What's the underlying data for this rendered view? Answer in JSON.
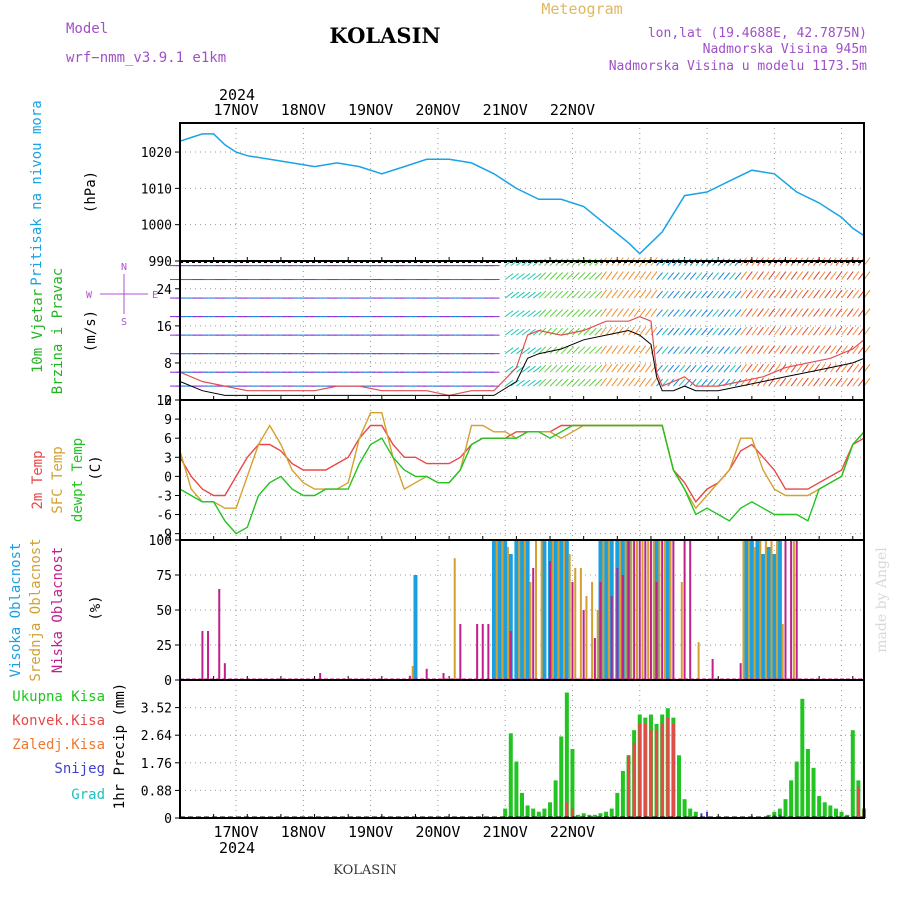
{
  "header": {
    "model_label": "Model",
    "model_value": "wrf−nmm_v3.9.1  e1km",
    "station": "KOLASIN",
    "product": "Meteogram",
    "location": "lon,lat (19.4688E, 42.7875N)",
    "elevation": "Nadmorska Visina 945m",
    "model_elevation": "Nadmorska Visina u modelu 1173.5m",
    "footer_station": "KOLASIN",
    "credit": "made by Angel"
  },
  "colors": {
    "pressure": "#1aa3e6",
    "wind_legend": "#22b422",
    "temp2m": "#e84848",
    "sfc": "#d4a030",
    "dewpt": "#22c422",
    "high_cloud": "#1aa0e0",
    "mid_cloud": "#d4a030",
    "low_cloud": "#c0208c",
    "total_precip": "#22c422",
    "conv_precip": "#e84848",
    "frz_precip": "#f07830",
    "snow": "#4040d0",
    "hail": "#20c0c0",
    "header_purple": "#a050c8",
    "meteogram_title": "#e0b860"
  },
  "chart_data": [
    {
      "type": "line",
      "panel": "pressure",
      "legend": [
        "Pritisak na nivou mora"
      ],
      "ylabel": "(hPa)",
      "year_label": "2024",
      "x_tick_labels": [
        "17NOV",
        "18NOV",
        "19NOV",
        "20NOV",
        "21NOV",
        "22NOV"
      ],
      "y_ticks": [
        990,
        1000,
        1010,
        1020
      ],
      "ylim": [
        990,
        1028
      ],
      "x_hours": [
        0,
        4,
        8,
        12,
        16,
        20,
        24,
        32,
        40,
        48,
        56,
        64,
        72,
        80,
        88,
        96,
        104,
        112,
        120,
        128,
        136,
        144,
        152,
        160,
        164,
        168,
        172,
        176,
        180,
        188,
        196,
        204,
        212,
        220,
        228,
        232,
        236,
        240,
        244
      ],
      "values": [
        1023,
        1024,
        1025,
        1025,
        1022,
        1020,
        1019,
        1018,
        1017,
        1016,
        1017,
        1016,
        1014,
        1016,
        1018,
        1018,
        1017,
        1014,
        1010,
        1007,
        1007,
        1005,
        1000,
        995,
        992,
        995,
        998,
        1003,
        1008,
        1009,
        1012,
        1015,
        1014,
        1009,
        1006,
        1004,
        1002,
        999,
        997
      ]
    },
    {
      "type": "line",
      "panel": "wind",
      "legend": [
        "10m Vjetar",
        "Brzina i Pravac"
      ],
      "ylabel": "(m/s)",
      "compass": "N W E S",
      "y_ticks": [
        0,
        8,
        16,
        24
      ],
      "ylim": [
        0,
        30
      ],
      "x_hours": [
        0,
        8,
        16,
        24,
        32,
        40,
        48,
        56,
        64,
        72,
        80,
        88,
        96,
        104,
        112,
        120,
        124,
        128,
        136,
        144,
        152,
        160,
        164,
        168,
        170,
        172,
        176,
        180,
        184,
        192,
        200,
        208,
        216,
        224,
        232,
        240,
        244
      ],
      "gust": [
        6,
        4,
        3,
        2,
        2,
        2,
        2,
        3,
        3,
        2,
        2,
        2,
        1,
        2,
        2,
        7,
        14,
        15,
        14,
        15,
        17,
        17,
        18,
        17,
        6,
        3,
        4,
        5,
        3,
        3,
        4,
        5,
        7,
        8,
        9,
        11,
        13
      ],
      "mean": [
        4,
        2,
        1,
        1,
        1,
        1,
        1,
        1,
        1,
        1,
        1,
        1,
        1,
        1,
        1,
        4,
        9,
        10,
        11,
        13,
        14,
        15,
        14,
        12,
        5,
        2,
        2,
        3,
        2,
        2,
        3,
        4,
        5,
        6,
        7,
        8,
        9
      ]
    },
    {
      "type": "line",
      "panel": "temperature",
      "legend": [
        "2m Temp",
        "SFC Temp",
        "dewpt Temp"
      ],
      "ylabel": "(C)",
      "y_ticks": [
        -9,
        -6,
        -3,
        0,
        3,
        6,
        9,
        12
      ],
      "ylim": [
        -10,
        12
      ],
      "x_hours": [
        0,
        4,
        8,
        12,
        16,
        20,
        24,
        28,
        32,
        36,
        40,
        44,
        48,
        52,
        56,
        60,
        64,
        68,
        72,
        76,
        80,
        84,
        88,
        92,
        96,
        100,
        104,
        108,
        112,
        116,
        120,
        124,
        128,
        132,
        136,
        140,
        144,
        148,
        152,
        156,
        160,
        164,
        168,
        172,
        176,
        180,
        184,
        188,
        192,
        196,
        200,
        204,
        208,
        212,
        216,
        220,
        224,
        228,
        232,
        236,
        240,
        244
      ],
      "series": [
        {
          "name": "2m Temp",
          "values": [
            3,
            0,
            -2,
            -3,
            -3,
            0,
            3,
            5,
            5,
            4,
            2,
            1,
            1,
            1,
            2,
            3,
            6,
            8,
            8,
            5,
            3,
            3,
            2,
            2,
            2,
            3,
            5,
            6,
            6,
            6,
            7,
            7,
            7,
            7,
            8,
            8,
            8,
            8,
            8,
            8,
            8,
            8,
            8,
            8,
            1,
            -1,
            -4,
            -2,
            -1,
            1,
            4,
            5,
            3,
            1,
            -2,
            -2,
            -2,
            -1,
            0,
            1,
            5,
            6
          ]
        },
        {
          "name": "SFC Temp",
          "values": [
            4,
            -2,
            -4,
            -4,
            -5,
            -5,
            0,
            5,
            8,
            5,
            1,
            -1,
            -2,
            -2,
            -2,
            -1,
            6,
            10,
            10,
            3,
            -2,
            -1,
            0,
            -1,
            -1,
            1,
            8,
            8,
            7,
            7,
            6,
            7,
            7,
            7,
            6,
            7,
            8,
            8,
            8,
            8,
            8,
            8,
            8,
            8,
            1,
            -2,
            -5,
            -3,
            -1,
            1,
            6,
            6,
            1,
            -2,
            -3,
            -3,
            -3,
            -2,
            -1,
            0,
            5,
            7
          ]
        },
        {
          "name": "dewpt Temp",
          "values": [
            -2,
            -3,
            -4,
            -4,
            -7,
            -9,
            -8,
            -3,
            -1,
            0,
            -2,
            -3,
            -3,
            -2,
            -2,
            -2,
            2,
            5,
            6,
            3,
            1,
            0,
            0,
            -1,
            -1,
            1,
            5,
            6,
            6,
            6,
            6,
            7,
            7,
            6,
            7,
            8,
            8,
            8,
            8,
            8,
            8,
            8,
            8,
            8,
            1,
            -2,
            -6,
            -5,
            -6,
            -7,
            -5,
            -4,
            -5,
            -6,
            -6,
            -6,
            -7,
            -2,
            -1,
            0,
            5,
            7
          ]
        }
      ]
    },
    {
      "type": "bar",
      "panel": "clouds",
      "legend": [
        "Visoka Oblacnost",
        "Srednja Oblacnost",
        "Niska Oblacnost"
      ],
      "ylabel": "(%)",
      "y_ticks": [
        0,
        25,
        50,
        75,
        100
      ],
      "ylim": [
        0,
        100
      ],
      "series": [
        {
          "name": "Visoka Oblacnost",
          "x_hours": [
            84,
            112,
            114,
            116,
            118,
            120,
            122,
            124,
            130,
            132,
            134,
            136,
            138,
            150,
            152,
            154,
            156,
            158,
            160,
            170,
            174,
            202,
            204,
            206,
            208,
            210,
            212,
            214
          ],
          "values": [
            75,
            100,
            100,
            100,
            90,
            100,
            100,
            100,
            100,
            100,
            100,
            100,
            100,
            100,
            100,
            100,
            100,
            100,
            100,
            100,
            100,
            100,
            100,
            100,
            90,
            95,
            90,
            100
          ]
        },
        {
          "name": "Srednja Oblacnost",
          "x_hours": [
            83,
            98,
            113,
            115,
            117,
            121,
            123,
            125,
            127,
            129,
            133,
            135,
            137,
            139,
            141,
            143,
            145,
            147,
            149,
            151,
            153,
            157,
            159,
            161,
            163,
            165,
            167,
            169,
            171,
            173,
            175,
            179,
            185,
            201,
            203,
            205,
            207,
            209,
            211,
            213,
            215,
            219
          ],
          "values": [
            10,
            87,
            100,
            100,
            95,
            100,
            100,
            70,
            100,
            100,
            100,
            100,
            100,
            90,
            80,
            80,
            60,
            70,
            50,
            100,
            100,
            100,
            100,
            100,
            100,
            100,
            100,
            100,
            100,
            100,
            100,
            70,
            27,
            100,
            100,
            95,
            100,
            100,
            100,
            100,
            40,
            100
          ]
        },
        {
          "name": "Niska Oblacnost",
          "x_hours": [
            8,
            10,
            14,
            16,
            50,
            82,
            88,
            94,
            100,
            106,
            108,
            110,
            118,
            126,
            132,
            140,
            144,
            148,
            150,
            154,
            156,
            158,
            160,
            162,
            164,
            166,
            168,
            170,
            172,
            176,
            180,
            182,
            190,
            200,
            216,
            218,
            220
          ],
          "values": [
            35,
            35,
            65,
            12,
            5,
            3,
            8,
            5,
            40,
            40,
            40,
            40,
            35,
            80,
            85,
            70,
            50,
            30,
            70,
            60,
            80,
            75,
            100,
            100,
            100,
            100,
            100,
            70,
            100,
            100,
            100,
            100,
            15,
            12,
            100,
            100,
            100
          ]
        }
      ]
    },
    {
      "type": "bar",
      "panel": "precipitation",
      "legend": [
        "Ukupna Kisa",
        "Konvek.Kisa",
        "Zaledj.Kisa",
        "Snijeg",
        "Grad"
      ],
      "ylabel": "1hr Precip (mm)",
      "y_ticks": [
        0,
        0.88,
        1.76,
        2.64,
        3.52
      ],
      "ylim": [
        0,
        4.4
      ],
      "x_tick_labels": [
        "17NOV",
        "18NOV",
        "19NOV",
        "20NOV",
        "21NOV",
        "22NOV"
      ],
      "year_label": "2024",
      "series": [
        {
          "name": "Ukupna Kisa",
          "x_hours": [
            116,
            118,
            120,
            122,
            124,
            126,
            128,
            130,
            132,
            134,
            136,
            138,
            140,
            142,
            144,
            146,
            148,
            150,
            152,
            154,
            156,
            158,
            160,
            162,
            164,
            166,
            168,
            170,
            172,
            174,
            176,
            178,
            180,
            182,
            184,
            210,
            212,
            214,
            216,
            218,
            220,
            222,
            224,
            226,
            228,
            230,
            232,
            234,
            236,
            238,
            240,
            242,
            244
          ],
          "values": [
            0.3,
            2.7,
            1.8,
            0.8,
            0.4,
            0.3,
            0.2,
            0.3,
            0.5,
            1.2,
            2.6,
            4.0,
            2.2,
            0.1,
            0.15,
            0.1,
            0.1,
            0.15,
            0.2,
            0.3,
            0.8,
            1.5,
            2.0,
            2.8,
            3.3,
            3.2,
            3.3,
            3.0,
            3.3,
            3.5,
            3.2,
            2.0,
            0.6,
            0.3,
            0.2,
            0.1,
            0.2,
            0.3,
            0.6,
            1.2,
            1.8,
            3.8,
            2.2,
            1.6,
            0.7,
            0.5,
            0.4,
            0.3,
            0.2,
            0.1,
            2.8,
            1.2,
            0.3
          ]
        },
        {
          "name": "Konvek.Kisa",
          "x_hours": [
            138,
            140,
            160,
            162,
            164,
            166,
            168,
            170,
            172,
            174,
            176,
            242,
            244
          ],
          "values": [
            0.5,
            0.3,
            2.0,
            2.4,
            3.0,
            3.0,
            2.8,
            2.8,
            3.0,
            3.2,
            3.0,
            1.0,
            0.3
          ]
        },
        {
          "name": "Zaledj.Kisa",
          "x_hours": [],
          "values": []
        },
        {
          "name": "Snijeg",
          "x_hours": [
            186,
            188,
            212,
            214
          ],
          "values": [
            0.15,
            0.2,
            0.1,
            0.1
          ]
        },
        {
          "name": "Grad",
          "x_hours": [],
          "values": []
        }
      ]
    }
  ]
}
